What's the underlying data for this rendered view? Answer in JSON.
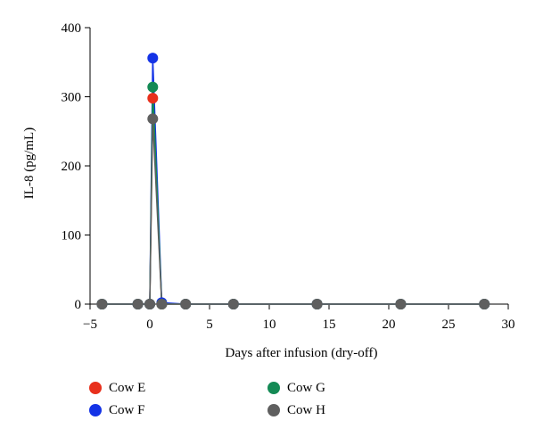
{
  "chart_data": {
    "type": "line",
    "title": "",
    "xlabel": "Days after infusion (dry-off)",
    "ylabel": "IL-8 (pg/mL)",
    "xlim": [
      -5,
      30
    ],
    "ylim": [
      0,
      400
    ],
    "xticks": [
      -5,
      0,
      5,
      10,
      15,
      20,
      25,
      30
    ],
    "yticks": [
      0,
      100,
      200,
      300,
      400
    ],
    "xtick_labels": [
      "−5",
      "0",
      "5",
      "10",
      "15",
      "20",
      "25",
      "30"
    ],
    "ytick_labels": [
      "0",
      "100",
      "200",
      "300",
      "400"
    ],
    "grid": false,
    "legend_position": "bottom",
    "series": [
      {
        "name": "Cow E",
        "color": "#e8301c",
        "x": [
          -4,
          -1,
          0,
          0.25,
          1,
          3,
          7,
          14,
          21,
          28
        ],
        "y": [
          0,
          0,
          0,
          298,
          0,
          0,
          0,
          0,
          0,
          0
        ]
      },
      {
        "name": "Cow F",
        "color": "#1433e6",
        "x": [
          -4,
          -1,
          0,
          0.25,
          1,
          3,
          7,
          14,
          21,
          28
        ],
        "y": [
          0,
          0,
          0,
          356,
          2,
          0,
          0,
          0,
          0,
          0
        ]
      },
      {
        "name": "Cow G",
        "color": "#148a55",
        "x": [
          -4,
          -1,
          0,
          0.25,
          1,
          3,
          7,
          14,
          21,
          28
        ],
        "y": [
          0,
          0,
          0,
          314,
          0,
          0,
          0,
          0,
          0,
          0
        ]
      },
      {
        "name": "Cow H",
        "color": "#5f5f5f",
        "x": [
          -4,
          -1,
          0,
          0.25,
          1,
          3,
          7,
          14,
          21,
          28
        ],
        "y": [
          0,
          0,
          0,
          268,
          0,
          0,
          0,
          0,
          0,
          0
        ]
      }
    ]
  }
}
